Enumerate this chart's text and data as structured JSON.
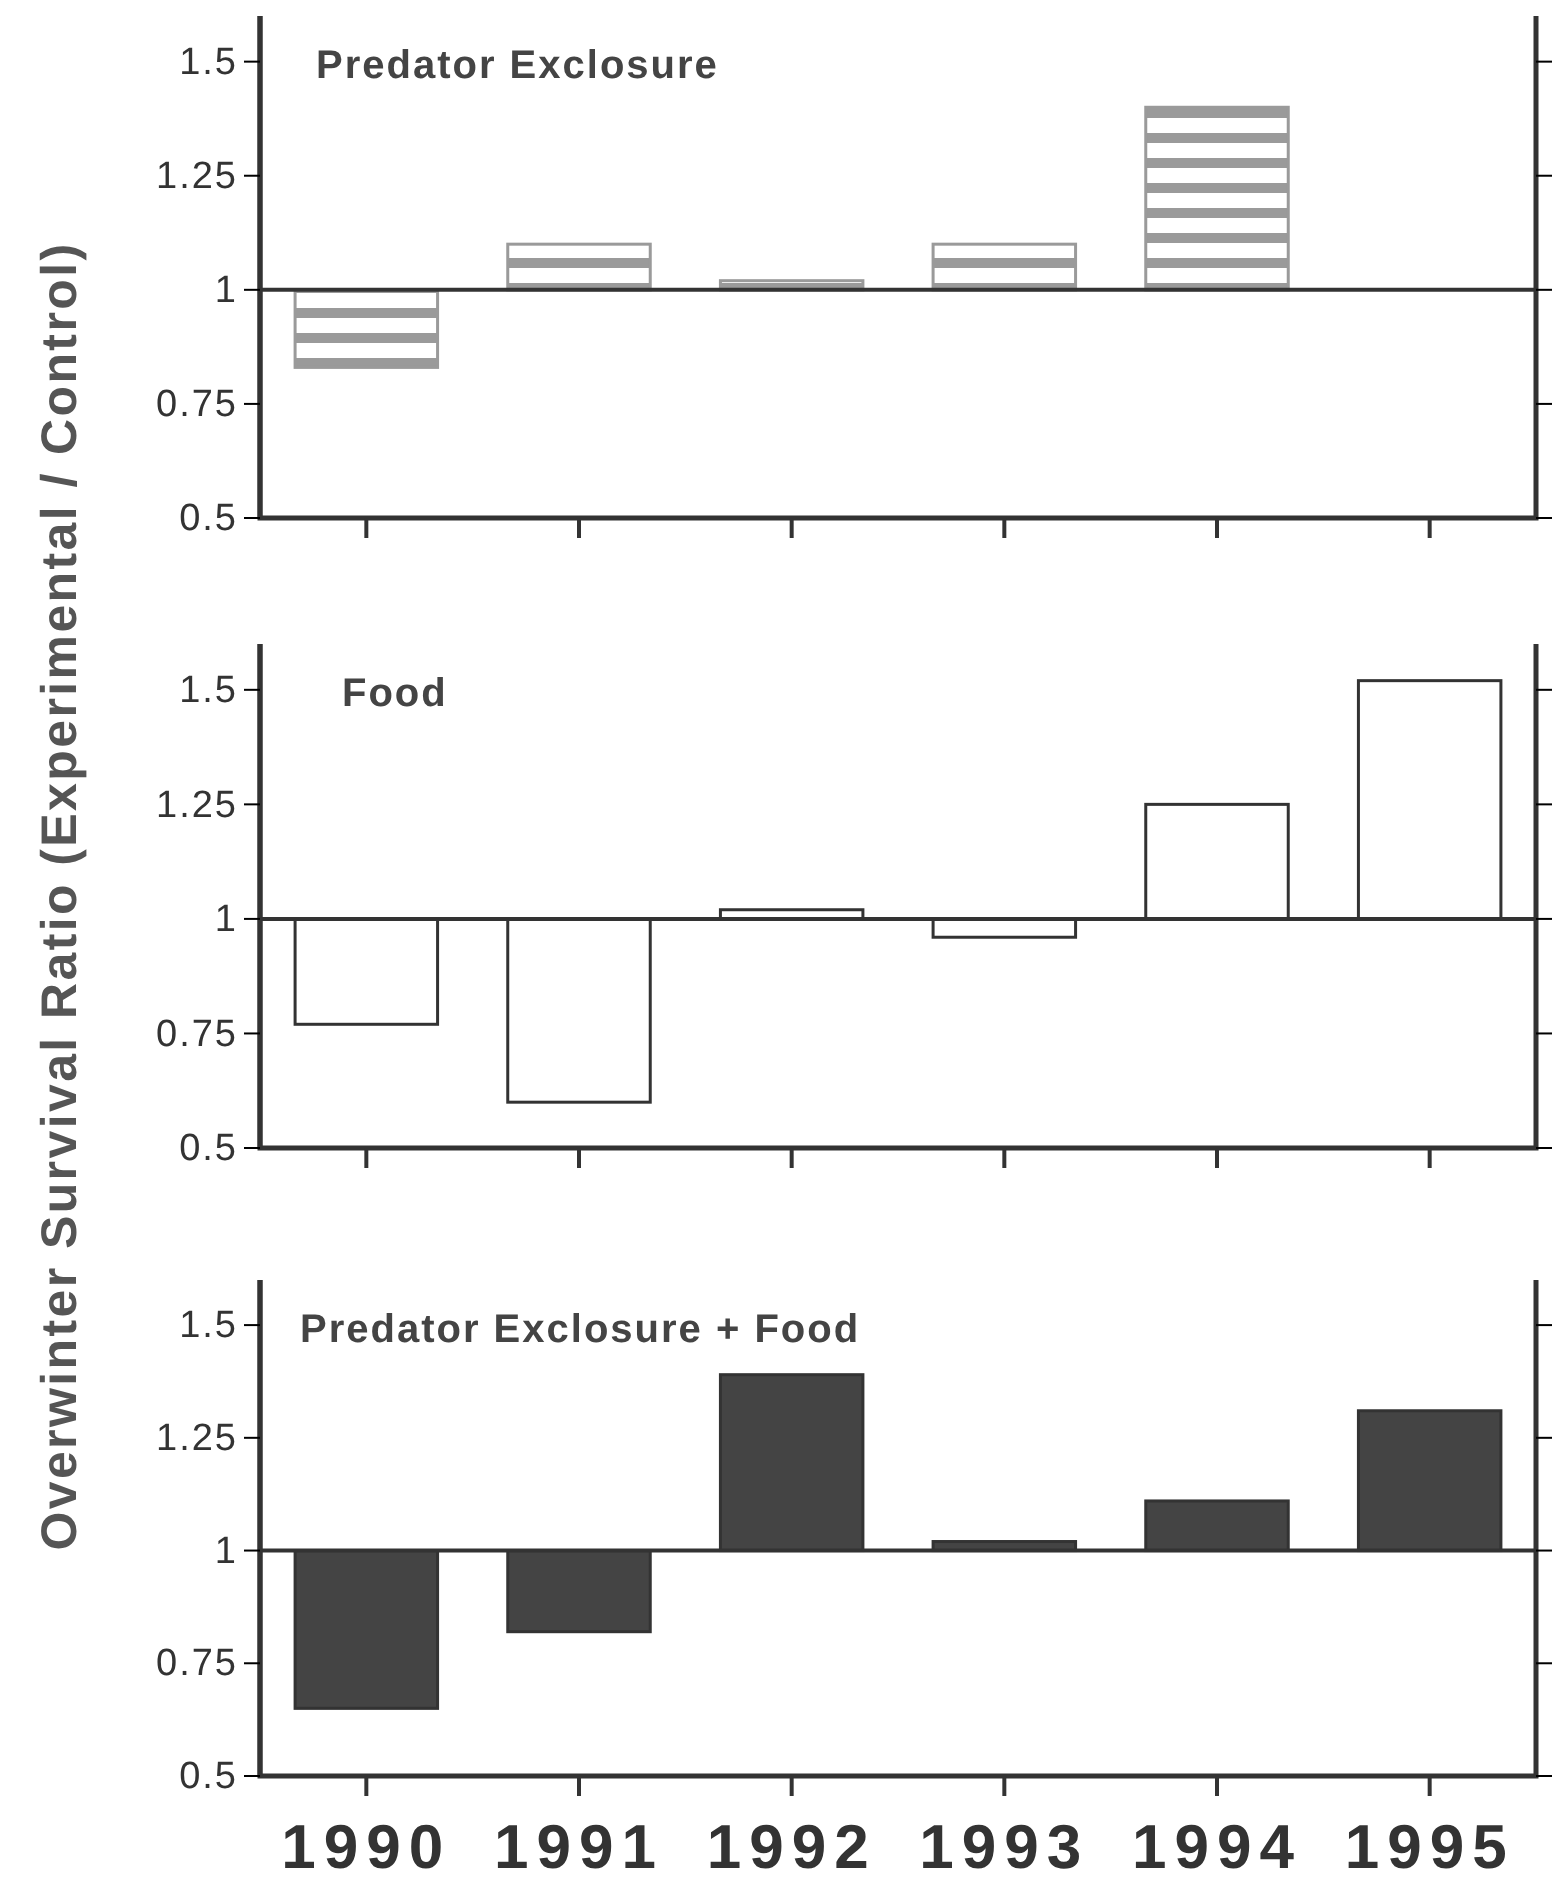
{
  "chart_data": [
    {
      "type": "bar",
      "title": "Predator Exclosure",
      "categories": [
        "1990",
        "1991",
        "1992",
        "1993",
        "1994",
        "1995"
      ],
      "base": [
        1,
        1,
        1,
        1,
        1,
        null
      ],
      "values": [
        -0.17,
        0.1,
        0.02,
        0.1,
        0.4,
        null
      ],
      "color": "#9a9a9a",
      "ylim": [
        0.5,
        1.6
      ],
      "yticks": [
        0.5,
        0.75,
        1,
        1.25,
        1.5
      ],
      "tick_labels": "y"
    },
    {
      "type": "bar",
      "title": "Food",
      "ylabel": "Overwinter Survival Ratio (Experimental / Control)",
      "categories": [
        "1990",
        "1991",
        "1992",
        "1993",
        "1994",
        "1995"
      ],
      "base": [
        1,
        1,
        1,
        1,
        1,
        1
      ],
      "values": [
        -0.23,
        -0.4,
        0.02,
        -0.04,
        0.25,
        0.52
      ],
      "color": "#ffffff",
      "ylim": [
        0.5,
        1.6
      ],
      "yticks": [
        0.5,
        0.75,
        1,
        1.25,
        1.5
      ],
      "tick_labels": "y"
    },
    {
      "type": "bar",
      "title": "Predator Exclosure + Food",
      "categories": [
        "1990",
        "1991",
        "1992",
        "1993",
        "1994",
        "1995"
      ],
      "base": [
        1,
        1,
        1,
        1,
        1,
        1
      ],
      "values": [
        -0.35,
        -0.18,
        0.39,
        0.02,
        0.11,
        0.31
      ],
      "color": "#444444",
      "ylim": [
        0.5,
        1.6
      ],
      "yticks": [
        0.5,
        0.75,
        1,
        1.25,
        1.5
      ]
    }
  ]
}
